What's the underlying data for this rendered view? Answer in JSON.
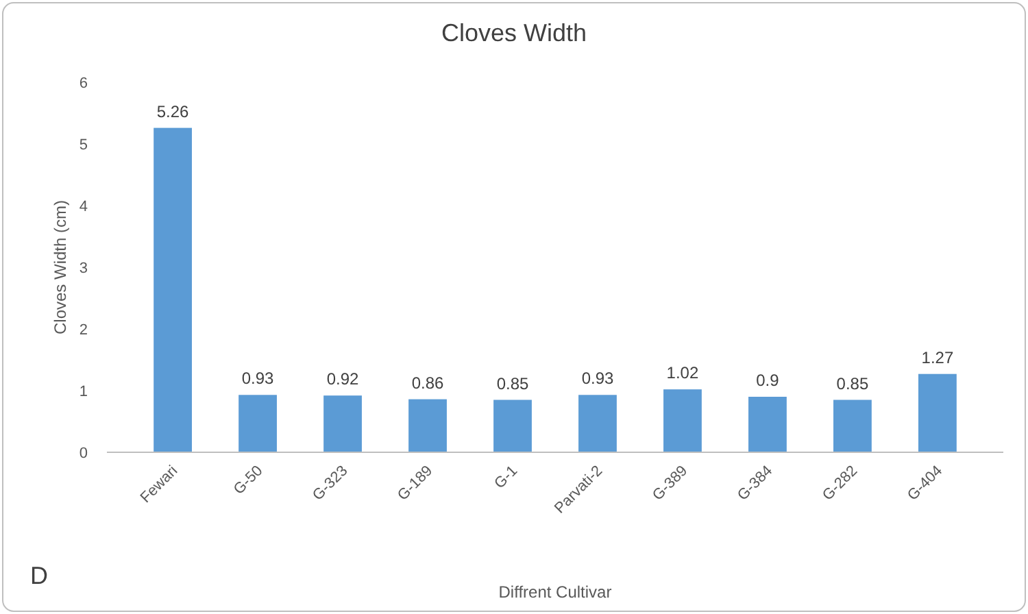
{
  "chart_data": {
    "type": "bar",
    "title": "Cloves Width",
    "xlabel": "Diffrent Cultivar",
    "ylabel": "Cloves Width (cm)",
    "categories": [
      "Fewari",
      "G-50",
      "G-323",
      "G-189",
      "G-1",
      "Parvati-2",
      "G-389",
      "G-384",
      "G-282",
      "G-404"
    ],
    "values": [
      5.26,
      0.93,
      0.92,
      0.86,
      0.85,
      0.93,
      1.02,
      0.9,
      0.85,
      1.27
    ],
    "color": "#5b9bd5",
    "ylim": [
      0,
      6
    ],
    "yticks": [
      0,
      1,
      2,
      3,
      4,
      5,
      6
    ],
    "grid": false,
    "data_labels": true,
    "annotations": [
      "D"
    ]
  }
}
